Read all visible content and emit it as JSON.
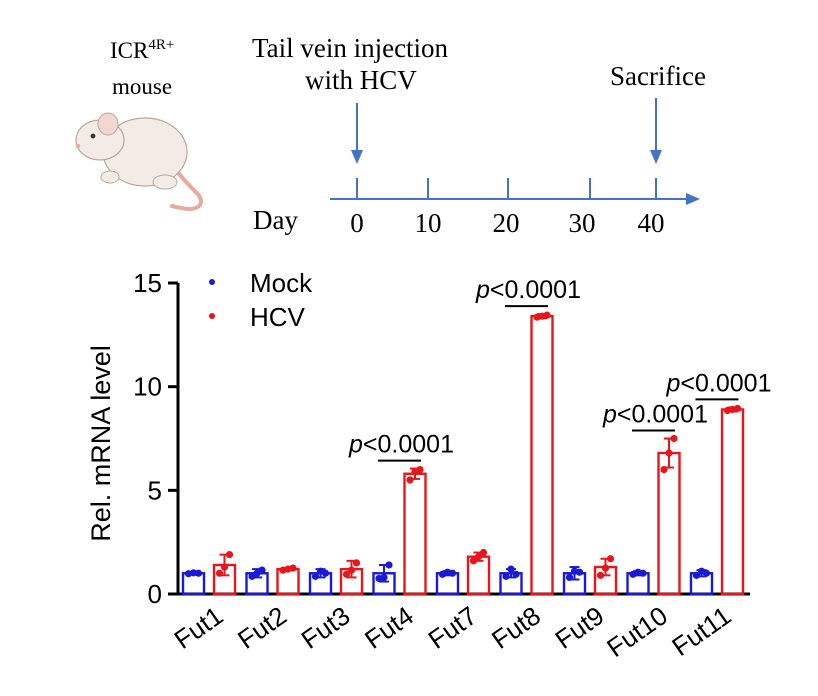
{
  "colors": {
    "mock": "#1a1ad6",
    "hcv": "#e8161b",
    "timeline": "#4472c4",
    "axis": "#000000",
    "mouse_body": "#f3ece6",
    "mouse_pink": "#e9a8a0"
  },
  "schematic": {
    "mouse_label_line1": "ICR",
    "mouse_label_sup": "4R+",
    "mouse_label_line2": "mouse",
    "injection_line1": "Tail vein injection",
    "injection_line2": "with HCV",
    "sacrifice": "Sacrifice",
    "day_label": "Day",
    "days": [
      "0",
      "10",
      "20",
      "30",
      "40"
    ]
  },
  "chart_data": {
    "type": "bar",
    "title": "",
    "xlabel": "",
    "ylabel": "Rel. mRNA level",
    "ylim": [
      0,
      15
    ],
    "yticks": [
      0,
      5,
      10,
      15
    ],
    "ytick_labels": [
      "0",
      "5",
      "10",
      "15"
    ],
    "categories": [
      "Fut1",
      "Fut2",
      "Fut3",
      "Fut4",
      "Fut7",
      "Fut8",
      "Fut9",
      "Fut10",
      "Fut11"
    ],
    "legend": {
      "position": "top-left",
      "entries": [
        "Mock",
        "HCV"
      ]
    },
    "series": [
      {
        "name": "Mock",
        "values": [
          1.0,
          1.0,
          1.0,
          1.0,
          1.0,
          1.0,
          1.0,
          1.0,
          1.0
        ],
        "errors": [
          0.05,
          0.2,
          0.2,
          0.4,
          0.1,
          0.2,
          0.3,
          0.1,
          0.15
        ],
        "points": [
          [
            0.98,
            1.02,
            1.0
          ],
          [
            0.85,
            1.0,
            1.15
          ],
          [
            0.85,
            1.1,
            1.0
          ],
          [
            0.75,
            0.8,
            1.4
          ],
          [
            0.95,
            1.05,
            1.0
          ],
          [
            0.85,
            1.2,
            0.95
          ],
          [
            0.8,
            1.1,
            1.05
          ],
          [
            0.95,
            1.05,
            1.0
          ],
          [
            0.9,
            1.1,
            1.0
          ]
        ]
      },
      {
        "name": "HCV",
        "values": [
          1.4,
          1.2,
          1.2,
          5.8,
          1.8,
          13.4,
          1.3,
          6.8,
          8.9
        ],
        "errors": [
          0.5,
          0.05,
          0.4,
          0.25,
          0.2,
          0.1,
          0.4,
          0.7,
          0.1
        ],
        "points": [
          [
            1.0,
            1.3,
            1.9
          ],
          [
            1.15,
            1.2,
            1.25
          ],
          [
            0.95,
            1.15,
            1.5
          ],
          [
            5.5,
            5.9,
            6.0
          ],
          [
            1.6,
            1.8,
            2.0
          ],
          [
            13.35,
            13.4,
            13.45
          ],
          [
            0.9,
            1.25,
            1.7
          ],
          [
            6.0,
            6.8,
            7.5
          ],
          [
            8.85,
            8.9,
            8.95
          ]
        ]
      }
    ],
    "annotations": [
      {
        "category": "Fut4",
        "p_label": "p",
        "text": "<0.0001"
      },
      {
        "category": "Fut8",
        "p_label": "p",
        "text": "<0.0001"
      },
      {
        "category": "Fut10",
        "p_label": "p",
        "text": "<0.0001"
      },
      {
        "category": "Fut11",
        "p_label": "p",
        "text": "<0.0001"
      }
    ]
  }
}
